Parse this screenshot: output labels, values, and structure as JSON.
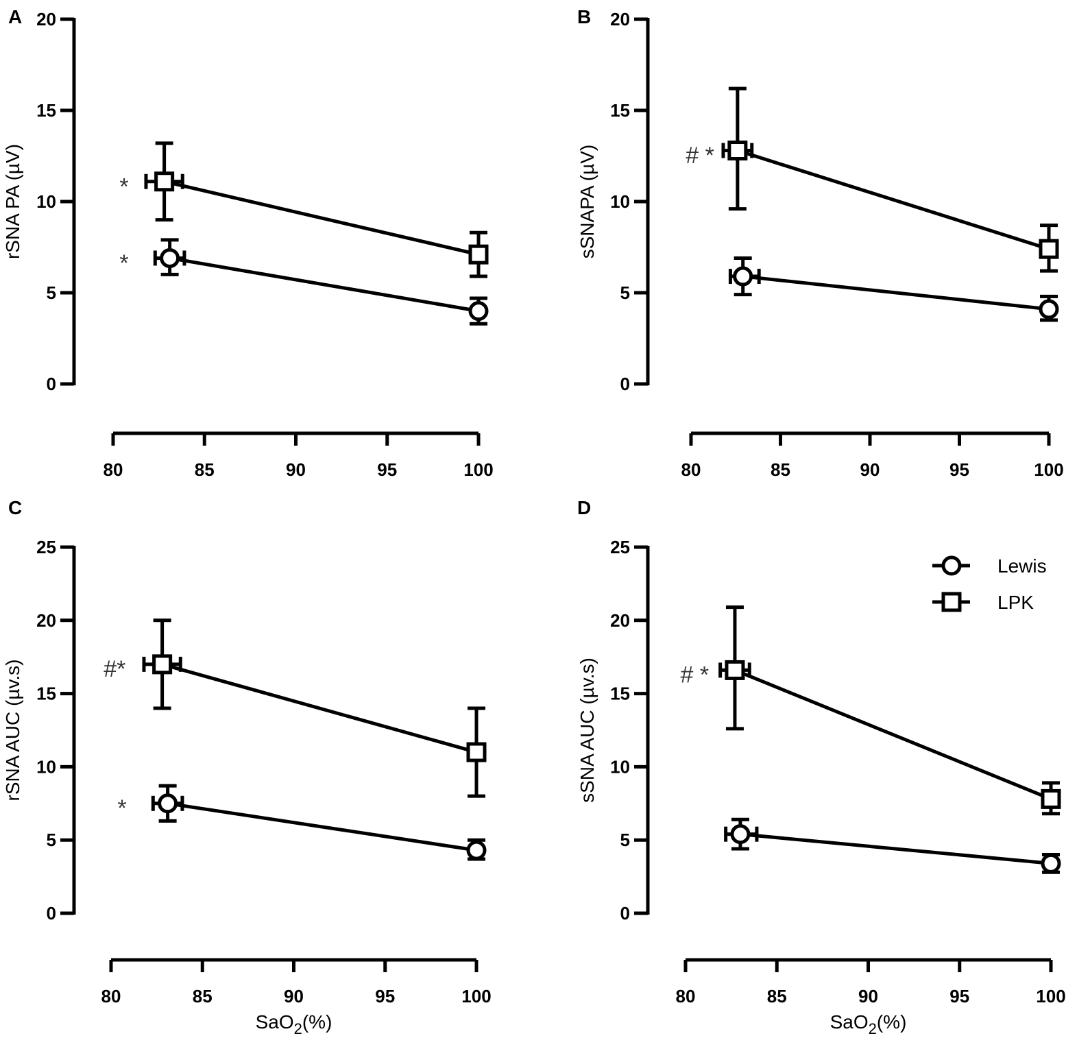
{
  "chart_data": [
    {
      "panel": "A",
      "type": "line",
      "ylabel": "rSNA PA (µV)",
      "xlabel": "",
      "xlim": [
        80,
        100
      ],
      "ylim": [
        0,
        20
      ],
      "xticks": [
        80,
        85,
        90,
        95,
        100
      ],
      "yticks": [
        0,
        5,
        10,
        15,
        20
      ],
      "series": [
        {
          "name": "LPK",
          "marker": "square",
          "points": [
            {
              "x": 82.8,
              "y": 11.1,
              "yerr_low": 9.0,
              "yerr_high": 13.2,
              "xerr_low": 81.8,
              "xerr_high": 83.8
            },
            {
              "x": 100,
              "y": 7.1,
              "yerr_low": 5.9,
              "yerr_high": 8.3
            }
          ]
        },
        {
          "name": "Lewis",
          "marker": "circle",
          "points": [
            {
              "x": 83.1,
              "y": 6.9,
              "yerr_low": 6.0,
              "yerr_high": 7.9,
              "xerr_low": 82.3,
              "xerr_high": 83.9
            },
            {
              "x": 100,
              "y": 4.0,
              "yerr_low": 3.3,
              "yerr_high": 4.7
            }
          ]
        }
      ],
      "annotations": [
        {
          "text": "*",
          "x": 80.6,
          "y": 11.0
        },
        {
          "text": "*",
          "x": 80.6,
          "y": 6.8
        }
      ]
    },
    {
      "panel": "B",
      "type": "line",
      "ylabel": "sSNAPA (µV)",
      "xlabel": "",
      "xlim": [
        80,
        100
      ],
      "ylim": [
        0,
        20
      ],
      "xticks": [
        80,
        85,
        90,
        95,
        100
      ],
      "yticks": [
        0,
        5,
        10,
        15,
        20
      ],
      "series": [
        {
          "name": "LPK",
          "marker": "square",
          "points": [
            {
              "x": 82.6,
              "y": 12.8,
              "yerr_low": 9.6,
              "yerr_high": 16.2,
              "xerr_low": 81.8,
              "xerr_high": 83.4
            },
            {
              "x": 100,
              "y": 7.4,
              "yerr_low": 6.2,
              "yerr_high": 8.7
            }
          ]
        },
        {
          "name": "Lewis",
          "marker": "circle",
          "points": [
            {
              "x": 82.9,
              "y": 5.9,
              "yerr_low": 4.9,
              "yerr_high": 6.9,
              "xerr_low": 82.2,
              "xerr_high": 83.8
            },
            {
              "x": 100,
              "y": 4.1,
              "yerr_low": 3.5,
              "yerr_high": 4.8
            }
          ]
        }
      ],
      "annotations": [
        {
          "text": "# *",
          "x": 80.5,
          "y": 12.7
        }
      ]
    },
    {
      "panel": "C",
      "type": "line",
      "ylabel": "rSNA AUC (µv.s)",
      "xlabel": "SaO2(%)",
      "xlim": [
        80,
        100
      ],
      "ylim": [
        0,
        25
      ],
      "xticks": [
        80,
        85,
        90,
        95,
        100
      ],
      "yticks": [
        0,
        5,
        10,
        15,
        20,
        25
      ],
      "series": [
        {
          "name": "LPK",
          "marker": "square",
          "points": [
            {
              "x": 82.8,
              "y": 17.0,
              "yerr_low": 14.0,
              "yerr_high": 20.0,
              "xerr_low": 81.8,
              "xerr_high": 83.8
            },
            {
              "x": 100,
              "y": 11.0,
              "yerr_low": 8.0,
              "yerr_high": 14.0
            }
          ]
        },
        {
          "name": "Lewis",
          "marker": "circle",
          "points": [
            {
              "x": 83.1,
              "y": 7.5,
              "yerr_low": 6.3,
              "yerr_high": 8.7,
              "xerr_low": 82.3,
              "xerr_high": 83.9
            },
            {
              "x": 100,
              "y": 4.3,
              "yerr_low": 3.7,
              "yerr_high": 5.0
            }
          ]
        }
      ],
      "annotations": [
        {
          "text": "#*",
          "x": 80.2,
          "y": 16.9
        },
        {
          "text": "*",
          "x": 80.6,
          "y": 7.4
        }
      ]
    },
    {
      "panel": "D",
      "type": "line",
      "ylabel": "sSNA AUC (µv.s)",
      "xlabel": "SaO2(%)",
      "xlim": [
        80,
        100
      ],
      "ylim": [
        0,
        25
      ],
      "xticks": [
        80,
        85,
        90,
        95,
        100
      ],
      "yticks": [
        0,
        5,
        10,
        15,
        20,
        25
      ],
      "series": [
        {
          "name": "LPK",
          "marker": "square",
          "points": [
            {
              "x": 82.7,
              "y": 16.6,
              "yerr_low": 12.6,
              "yerr_high": 20.9,
              "xerr_low": 81.9,
              "xerr_high": 83.5
            },
            {
              "x": 100,
              "y": 7.8,
              "yerr_low": 6.8,
              "yerr_high": 8.9
            }
          ]
        },
        {
          "name": "Lewis",
          "marker": "circle",
          "points": [
            {
              "x": 83.0,
              "y": 5.4,
              "yerr_low": 4.4,
              "yerr_high": 6.4,
              "xerr_low": 82.2,
              "xerr_high": 83.9
            },
            {
              "x": 100,
              "y": 3.4,
              "yerr_low": 2.8,
              "yerr_high": 4.0
            }
          ]
        }
      ],
      "annotations": [
        {
          "text": "# *",
          "x": 80.5,
          "y": 16.5
        }
      ],
      "legend": [
        {
          "name": "Lewis",
          "marker": "circle"
        },
        {
          "name": "LPK",
          "marker": "square"
        }
      ]
    }
  ]
}
